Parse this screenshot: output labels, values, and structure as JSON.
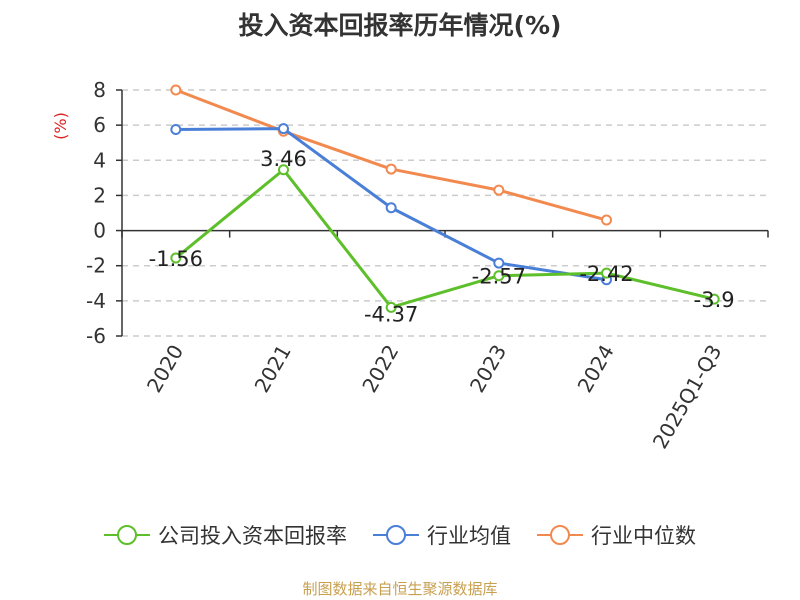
{
  "chart_data": {
    "type": "line",
    "title": "投入资本回报率历年情况(%)",
    "ylabel": "(%)",
    "xlabel": "",
    "ylim": [
      -6,
      8
    ],
    "yticks": [
      8,
      6,
      4,
      2,
      0,
      -2,
      -4,
      -6
    ],
    "categories": [
      "2020",
      "2021",
      "2022",
      "2023",
      "2024",
      "2025Q1-Q3"
    ],
    "series": [
      {
        "name": "公司投入资本回报率",
        "color": "#5dbf2a",
        "values": [
          -1.56,
          3.46,
          -4.37,
          -2.57,
          -2.42,
          -3.9
        ],
        "labels": [
          "-1.56",
          "3.46",
          "-4.37",
          "-2.57",
          "-2.42",
          "-3.9"
        ]
      },
      {
        "name": "行业均值",
        "color": "#4a7fd8",
        "values": [
          5.75,
          5.8,
          1.3,
          -1.85,
          -2.8,
          null
        ]
      },
      {
        "name": "行业中位数",
        "color": "#f28a50",
        "values": [
          8.0,
          5.65,
          3.5,
          2.3,
          0.6,
          null
        ]
      }
    ],
    "grid": true,
    "legend_position": "bottom"
  },
  "source": "制图数据来自恒生聚源数据库"
}
